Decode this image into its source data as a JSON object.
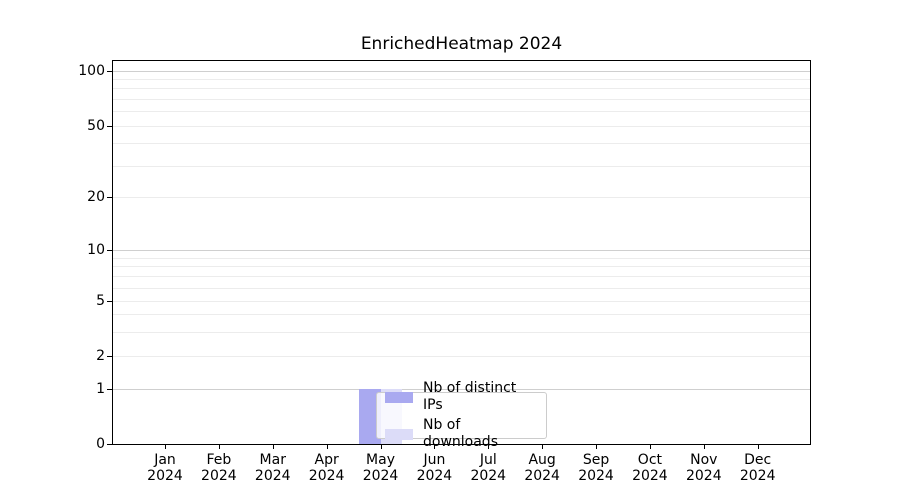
{
  "title": "EnrichedHeatmap 2024",
  "colors": {
    "distinct_ips": "#a9a9f0",
    "downloads": "#dcdcf8",
    "grid_minor": "#ececec",
    "grid_major": "#cfcfcf",
    "spine": "#000000",
    "legend_border": "#cccccc"
  },
  "legend": {
    "items": [
      {
        "label": "Nb of distinct IPs",
        "color": "#a9a9f0"
      },
      {
        "label": "Nb of downloads",
        "color": "#dcdcf8"
      }
    ]
  },
  "x_axis": {
    "year": "2024",
    "months": [
      "Jan",
      "Feb",
      "Mar",
      "Apr",
      "May",
      "Jun",
      "Jul",
      "Aug",
      "Sep",
      "Oct",
      "Nov",
      "Dec"
    ]
  },
  "y_axis": {
    "tick_values": [
      0,
      1,
      2,
      5,
      10,
      20,
      50,
      100
    ],
    "minor_grid_values": [
      2,
      3,
      4,
      5,
      6,
      7,
      8,
      9,
      20,
      30,
      40,
      50,
      60,
      70,
      80,
      90
    ],
    "major_grid_values": [
      1,
      10,
      100
    ]
  },
  "chart_data": {
    "type": "bar",
    "title": "EnrichedHeatmap 2024",
    "categories": [
      "Jan 2024",
      "Feb 2024",
      "Mar 2024",
      "Apr 2024",
      "May 2024",
      "Jun 2024",
      "Jul 2024",
      "Aug 2024",
      "Sep 2024",
      "Oct 2024",
      "Nov 2024",
      "Dec 2024"
    ],
    "series": [
      {
        "name": "Nb of distinct IPs",
        "color": "#a9a9f0",
        "values": [
          0,
          0,
          0,
          0,
          1,
          0,
          0,
          0,
          0,
          0,
          0,
          0
        ]
      },
      {
        "name": "Nb of downloads",
        "color": "#dcdcf8",
        "values": [
          0,
          0,
          0,
          0,
          1,
          0,
          0,
          0,
          0,
          0,
          0,
          0
        ]
      }
    ],
    "xlabel": "",
    "ylabel": "",
    "yscale": "symlog",
    "y_ticks": [
      0,
      1,
      2,
      5,
      10,
      20,
      50,
      100
    ],
    "ylim": [
      0,
      115
    ],
    "grid": "horizontal major+minor, no vertical",
    "legend_position": "inside lower-center-left"
  }
}
